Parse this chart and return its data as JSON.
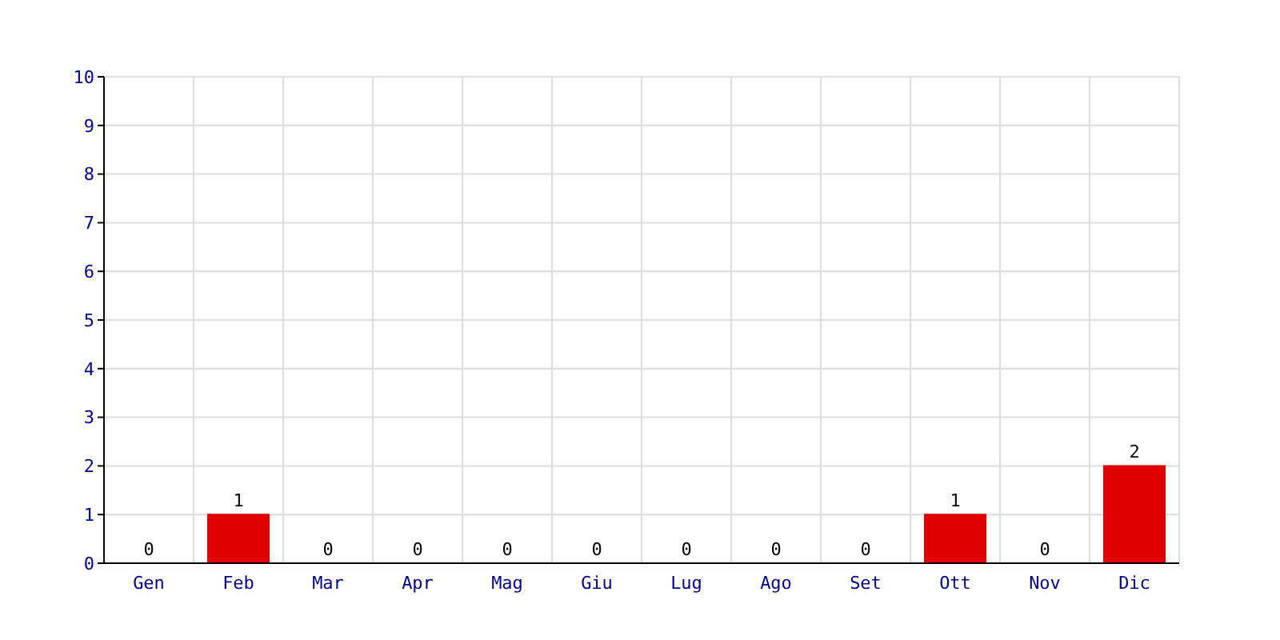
{
  "chart_data": {
    "type": "bar",
    "categories": [
      "Gen",
      "Feb",
      "Mar",
      "Apr",
      "Mag",
      "Giu",
      "Lug",
      "Ago",
      "Set",
      "Ott",
      "Nov",
      "Dic"
    ],
    "values": [
      0,
      1,
      0,
      0,
      0,
      0,
      0,
      0,
      0,
      1,
      0,
      2
    ],
    "color": "#e00000",
    "ylim": [
      0,
      10
    ],
    "yticks": [
      0,
      1,
      2,
      3,
      4,
      5,
      6,
      7,
      8,
      9,
      10
    ],
    "grid": true,
    "data_labels": true
  }
}
